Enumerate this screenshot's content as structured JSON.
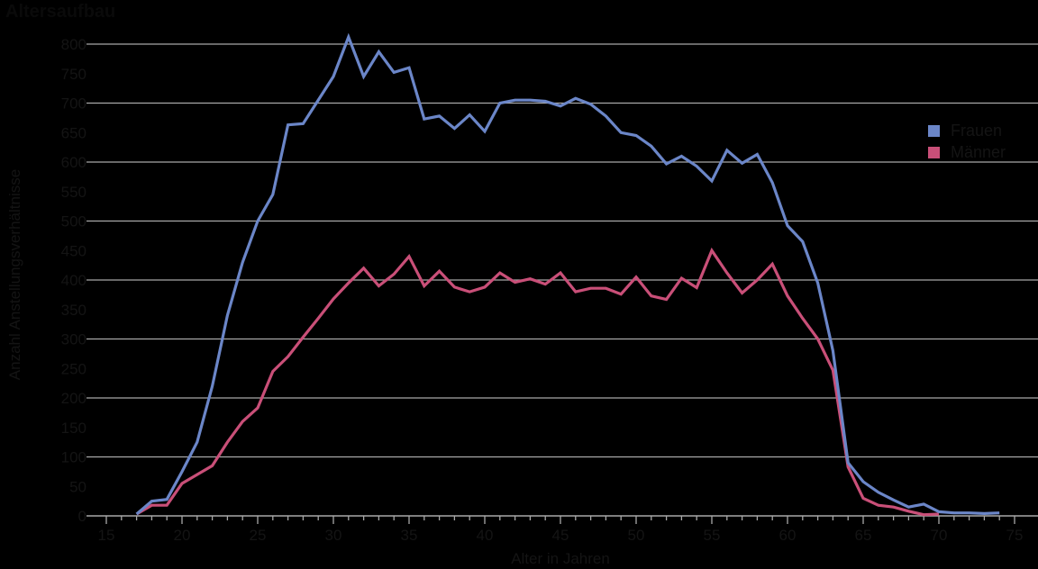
{
  "chart_data": {
    "type": "line",
    "title": "Altersaufbau",
    "xlabel": "Alter in Jahren",
    "ylabel": "Anzahl Anstellungsverhältnisse",
    "xlim": [
      15,
      75
    ],
    "ylim": [
      0,
      800
    ],
    "x_ticks": [
      15,
      20,
      25,
      30,
      35,
      40,
      45,
      50,
      55,
      60,
      65,
      70,
      75
    ],
    "y_ticks": [
      0,
      50,
      100,
      150,
      200,
      250,
      300,
      350,
      400,
      450,
      500,
      550,
      600,
      650,
      700,
      750,
      800
    ],
    "grid": "horizontal lines every 100",
    "legend_position": "right",
    "series": [
      {
        "name": "Frauen",
        "color": "#6b86c8",
        "x": [
          17,
          18,
          19,
          20,
          21,
          22,
          23,
          24,
          25,
          26,
          27,
          28,
          29,
          30,
          31,
          32,
          33,
          34,
          35,
          36,
          37,
          38,
          39,
          40,
          41,
          42,
          43,
          44,
          45,
          46,
          47,
          48,
          49,
          50,
          51,
          52,
          53,
          54,
          55,
          56,
          57,
          58,
          59,
          60,
          61,
          62,
          63,
          64,
          65,
          66,
          67,
          68,
          69,
          70,
          71,
          72,
          73,
          74
        ],
        "values": [
          3,
          25,
          28,
          75,
          125,
          220,
          340,
          430,
          500,
          545,
          663,
          665,
          705,
          745,
          812,
          745,
          787,
          752,
          760,
          673,
          678,
          657,
          680,
          652,
          700,
          705,
          705,
          703,
          695,
          708,
          698,
          678,
          650,
          645,
          627,
          597,
          610,
          593,
          568,
          620,
          598,
          613,
          565,
          492,
          465,
          395,
          280,
          90,
          58,
          40,
          27,
          15,
          20,
          7,
          5,
          5,
          4,
          5
        ]
      },
      {
        "name": "Männer",
        "color": "#c94f78",
        "x": [
          17,
          18,
          19,
          20,
          21,
          22,
          23,
          24,
          25,
          26,
          27,
          28,
          29,
          30,
          31,
          32,
          33,
          34,
          35,
          36,
          37,
          38,
          39,
          40,
          41,
          42,
          43,
          44,
          45,
          46,
          47,
          48,
          49,
          50,
          51,
          52,
          53,
          54,
          55,
          56,
          57,
          58,
          59,
          60,
          61,
          62,
          63,
          64,
          65,
          66,
          67,
          68,
          69,
          70
        ],
        "values": [
          3,
          18,
          18,
          55,
          70,
          85,
          125,
          160,
          183,
          245,
          270,
          303,
          335,
          368,
          395,
          420,
          390,
          410,
          440,
          390,
          415,
          388,
          380,
          388,
          412,
          396,
          402,
          393,
          412,
          380,
          386,
          386,
          376,
          405,
          373,
          367,
          403,
          387,
          450,
          412,
          378,
          400,
          427,
          373,
          335,
          300,
          247,
          83,
          30,
          18,
          15,
          8,
          2,
          3
        ]
      }
    ]
  },
  "colors": {
    "background": "#000000",
    "gridline": "#a8a8a8",
    "text": "#141414"
  }
}
